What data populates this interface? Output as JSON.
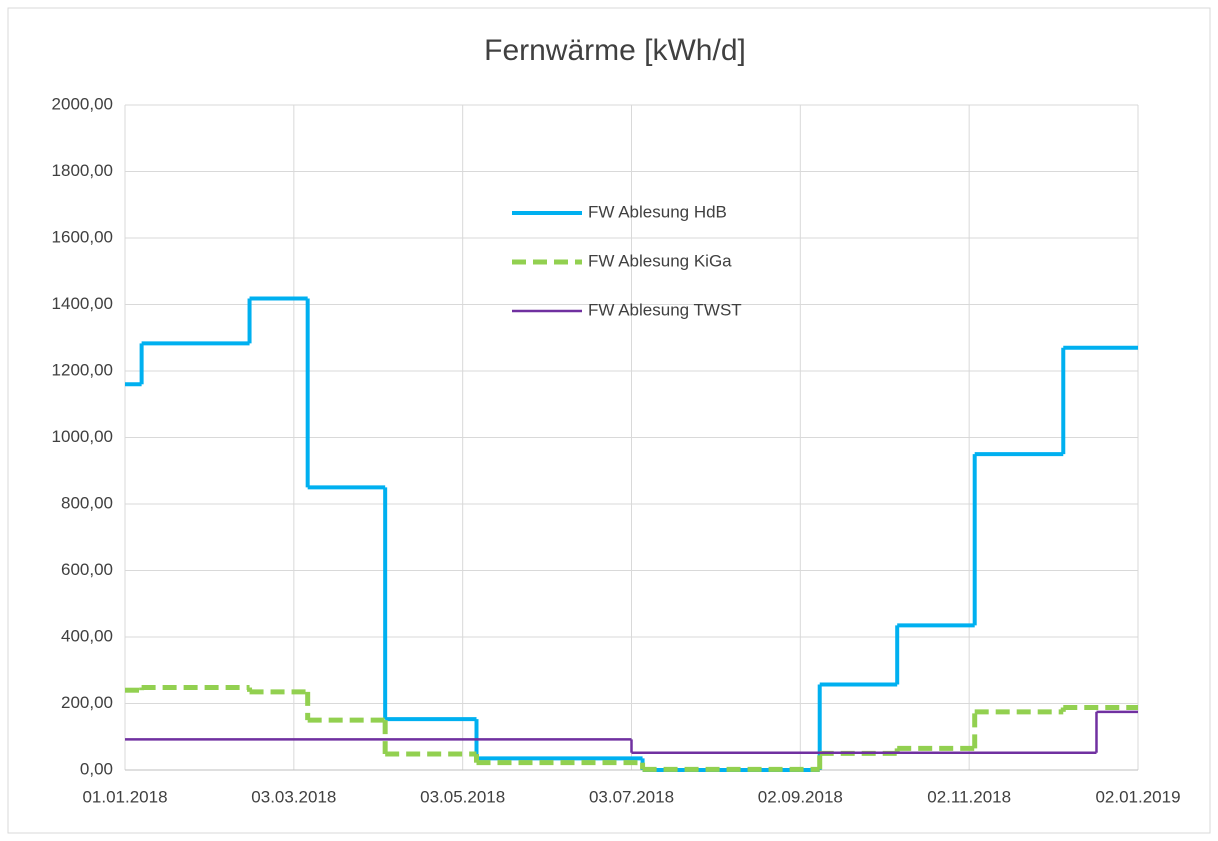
{
  "chart_data": {
    "type": "step",
    "title": "Fernwärme [kWh/d]",
    "xlim": [
      "01.01.2018",
      "02.01.2019"
    ],
    "xticks": [
      "01.01.2018",
      "03.03.2018",
      "03.05.2018",
      "03.07.2018",
      "02.09.2018",
      "02.11.2018",
      "02.01.2019"
    ],
    "ylim": [
      0,
      2000
    ],
    "yticks": [
      {
        "value": 0,
        "label": "0,00"
      },
      {
        "value": 200,
        "label": "200,00"
      },
      {
        "value": 400,
        "label": "400,00"
      },
      {
        "value": 600,
        "label": "600,00"
      },
      {
        "value": 800,
        "label": "800,00"
      },
      {
        "value": 1000,
        "label": "1000,00"
      },
      {
        "value": 1200,
        "label": "1200,00"
      },
      {
        "value": 1400,
        "label": "1400,00"
      },
      {
        "value": 1600,
        "label": "1600,00"
      },
      {
        "value": 1800,
        "label": "1800,00"
      },
      {
        "value": 2000,
        "label": "2000,00"
      }
    ],
    "grid": true,
    "series": [
      {
        "name": "FW Ablesung HdB",
        "color": "#00b0f0",
        "dashed": false,
        "width": 4,
        "x": [
          "01.01.2018",
          "07.01.2018",
          "15.02.2018",
          "08.03.2018",
          "05.04.2018",
          "08.05.2018",
          "07.07.2018",
          "09.09.2018",
          "07.10.2018",
          "04.11.2018",
          "06.12.2018"
        ],
        "values": [
          1160,
          1283,
          1418,
          850,
          153,
          35,
          0,
          257,
          435,
          950,
          1270
        ]
      },
      {
        "name": "FW Ablesung KiGa",
        "color": "#92d050",
        "dashed": true,
        "width": 5,
        "x": [
          "01.01.2018",
          "07.01.2018",
          "15.02.2018",
          "08.03.2018",
          "05.04.2018",
          "08.05.2018",
          "07.07.2018",
          "09.09.2018",
          "07.10.2018",
          "04.11.2018",
          "06.12.2018"
        ],
        "values": [
          240,
          248,
          235,
          150,
          48,
          22,
          2,
          50,
          65,
          175,
          188
        ]
      },
      {
        "name": "FW Ablesung TWST",
        "color": "#7030a0",
        "dashed": false,
        "width": 2.5,
        "x": [
          "01.01.2018",
          "03.07.2018",
          "18.12.2018"
        ],
        "values": [
          92,
          52,
          175
        ]
      }
    ]
  }
}
